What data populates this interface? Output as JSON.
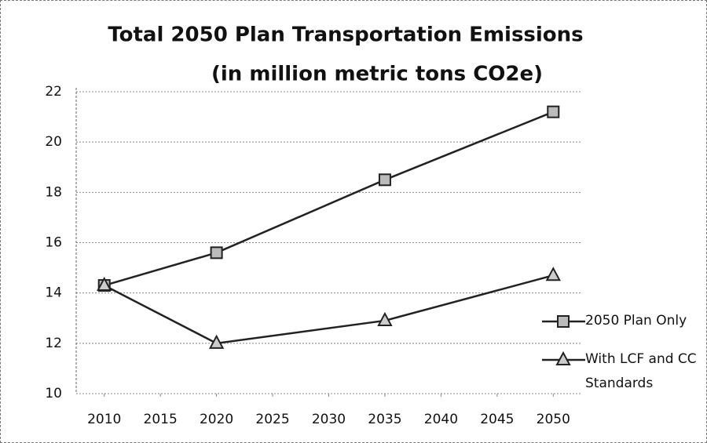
{
  "chart_data": {
    "type": "line",
    "title": "Total 2050 Plan Transportation Emissions",
    "subtitle": "(in million metric tons CO2e)",
    "x": [
      2010,
      2020,
      2035,
      2050
    ],
    "series": [
      {
        "name": "2050 Plan Only",
        "color": "#222222",
        "marker": "square",
        "values": [
          14.3,
          15.6,
          18.5,
          21.2
        ]
      },
      {
        "name": "With LCF and CC Standards",
        "color": "#222222",
        "marker": "triangle",
        "values": [
          14.3,
          12.0,
          12.9,
          14.7
        ]
      }
    ],
    "xlim": [
      2007.5,
      2052.5
    ],
    "xticks": [
      2010,
      2015,
      2020,
      2025,
      2030,
      2035,
      2040,
      2045,
      2050
    ],
    "ylim": [
      10,
      22
    ],
    "yticks": [
      10,
      12,
      14,
      16,
      18,
      20,
      22
    ],
    "grid": true,
    "legend": "right"
  }
}
